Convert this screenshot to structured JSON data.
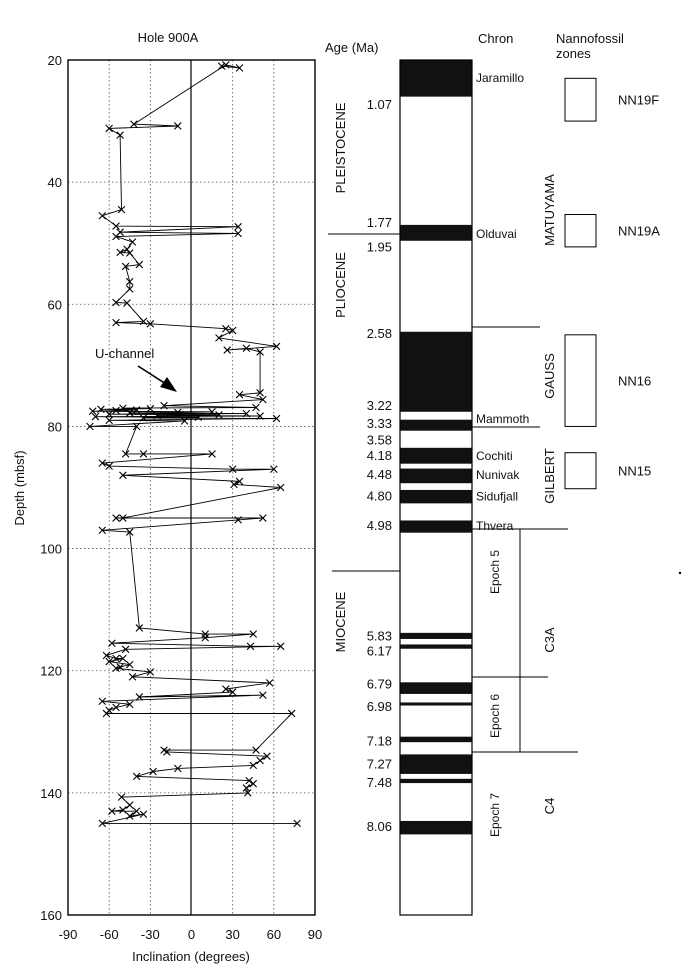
{
  "chart_data": {
    "type": "line",
    "title": "Hole 900A",
    "xlabel": "Inclination (degrees)",
    "ylabel": "Depth (mbsf)",
    "xlim": [
      -90,
      90
    ],
    "ylim": [
      20,
      160
    ],
    "y_inverted": true,
    "xticks": [
      "-90",
      "-60",
      "-30",
      "0",
      "30",
      "60",
      "90"
    ],
    "yticks": [
      "20",
      "40",
      "60",
      "80",
      "100",
      "120",
      "140",
      "160"
    ],
    "grid": "dotted",
    "annotation": "U-channel",
    "annotation_target": {
      "x": -12,
      "y": 77.5
    },
    "series": [
      {
        "points": [
          [
            22,
            21
          ],
          [
            35,
            21.3
          ],
          [
            25,
            20.8
          ],
          [
            -42,
            30.5
          ],
          [
            -10,
            30.8
          ],
          [
            -60,
            31.2
          ],
          [
            -52,
            32.3
          ],
          [
            -51,
            44.5
          ],
          [
            -65,
            45.5
          ],
          [
            -55,
            47.2
          ],
          [
            34,
            47.3
          ],
          [
            -52,
            48.2
          ],
          [
            34,
            48.4
          ],
          [
            -55,
            48.9
          ],
          [
            -43,
            49.8
          ],
          [
            -47,
            51
          ],
          [
            -52,
            51.5
          ],
          [
            -45,
            51.6
          ],
          [
            -38,
            53.5
          ],
          [
            -48,
            53.8
          ],
          [
            -45,
            56.3
          ],
          [
            -45,
            57.5
          ],
          [
            -55,
            59.7
          ],
          [
            -47,
            59.8
          ],
          [
            -35,
            62.8
          ],
          [
            -55,
            63
          ],
          [
            -30,
            63.2
          ],
          [
            25,
            64
          ],
          [
            30,
            64.3
          ],
          [
            20,
            65.5
          ],
          [
            62,
            66.9
          ],
          [
            26,
            67.5
          ],
          [
            40,
            67.2
          ],
          [
            50,
            67.8
          ],
          [
            50,
            74.5
          ],
          [
            35,
            74.8
          ],
          [
            52,
            75.6
          ],
          [
            -20,
            76.6
          ],
          [
            47,
            76.9
          ],
          [
            -50,
            77
          ],
          [
            -30,
            77.1
          ],
          [
            -66,
            77.2
          ],
          [
            -40,
            77.3
          ],
          [
            -55,
            77.4
          ],
          [
            -72,
            77.5
          ],
          [
            15,
            77.6
          ],
          [
            -10,
            77.7
          ],
          [
            -45,
            77.8
          ],
          [
            40,
            77.9
          ],
          [
            -60,
            78
          ],
          [
            20,
            78.1
          ],
          [
            -25,
            78.2
          ],
          [
            50,
            78.3
          ],
          [
            -70,
            78.4
          ],
          [
            5,
            78.5
          ],
          [
            -35,
            78.6
          ],
          [
            62,
            78.7
          ],
          [
            -60,
            79
          ],
          [
            -5,
            79.1
          ],
          [
            -74,
            80
          ],
          [
            -40,
            80
          ],
          [
            -48,
            84.5
          ],
          [
            -35,
            84.5
          ],
          [
            15,
            84.5
          ],
          [
            -65,
            86
          ],
          [
            -60,
            86.5
          ],
          [
            30,
            87
          ],
          [
            60,
            87
          ],
          [
            -50,
            88
          ],
          [
            35,
            89
          ],
          [
            31,
            89.5
          ],
          [
            65,
            90
          ],
          [
            -50,
            95
          ],
          [
            -55,
            95
          ],
          [
            52,
            95
          ],
          [
            34,
            95.3
          ],
          [
            -65,
            97
          ],
          [
            -45,
            97.3
          ],
          [
            -38,
            113
          ],
          [
            10,
            114
          ],
          [
            45,
            114
          ],
          [
            10,
            114.6
          ],
          [
            -58,
            115.5
          ],
          [
            43,
            116
          ],
          [
            65,
            116
          ],
          [
            -48,
            116.5
          ],
          [
            -62,
            117.5
          ],
          [
            -55,
            118
          ],
          [
            -50,
            118
          ],
          [
            -60,
            118.5
          ],
          [
            -45,
            119
          ],
          [
            -52,
            119.4
          ],
          [
            -55,
            119.6
          ],
          [
            -30,
            120.2
          ],
          [
            -43,
            121
          ],
          [
            57,
            122
          ],
          [
            25,
            123
          ],
          [
            30,
            123.5
          ],
          [
            -38,
            124.3
          ],
          [
            52,
            124
          ],
          [
            -65,
            125
          ],
          [
            -45,
            125.5
          ],
          [
            -55,
            126
          ],
          [
            -60,
            126.5
          ],
          [
            -62,
            127
          ],
          [
            73,
            127
          ],
          [
            47,
            133
          ],
          [
            -20,
            133
          ],
          [
            -18,
            133.3
          ],
          [
            55,
            134
          ],
          [
            50,
            134.7
          ],
          [
            45,
            135.5
          ],
          [
            -10,
            136
          ],
          [
            -28,
            136.5
          ],
          [
            -40,
            137.3
          ],
          [
            42,
            138
          ],
          [
            45,
            138.5
          ],
          [
            40,
            139.2
          ],
          [
            41,
            140
          ],
          [
            -51,
            140.7
          ],
          [
            -45,
            142
          ],
          [
            -50,
            142.8
          ],
          [
            -58,
            143
          ],
          [
            -40,
            143
          ],
          [
            -45,
            143.8
          ],
          [
            -35,
            143.5
          ],
          [
            -65,
            145
          ],
          [
            77,
            145
          ]
        ]
      }
    ]
  },
  "column_headers": {
    "age": "Age (Ma)",
    "chron": "Chron",
    "zones_line1": "Nannofossil",
    "zones_line2": "zones"
  },
  "epochs": [
    "PLEISTOCENE",
    "PLIOCENE",
    "MIOCENE"
  ],
  "ages": [
    {
      "label": "1.07",
      "depth": 27.2
    },
    {
      "label": "1.77",
      "depth": 46.5
    },
    {
      "label": "1.95",
      "depth": 50.5
    },
    {
      "label": "2.58",
      "depth": 64.7
    },
    {
      "label": "3.22",
      "depth": 76.5
    },
    {
      "label": "3.33",
      "depth": 79.4
    },
    {
      "label": "3.58",
      "depth": 82.1
    },
    {
      "label": "4.18",
      "depth": 84.7
    },
    {
      "label": "4.48",
      "depth": 87.8
    },
    {
      "label": "4.80",
      "depth": 91.3
    },
    {
      "label": "4.98",
      "depth": 96.1
    },
    {
      "label": "5.83",
      "depth": 114.2
    },
    {
      "label": "6.17",
      "depth": 116.7
    },
    {
      "label": "6.79",
      "depth": 122.1
    },
    {
      "label": "6.98",
      "depth": 125.8
    },
    {
      "label": "7.18",
      "depth": 131.4
    },
    {
      "label": "7.27",
      "depth": 135.2
    },
    {
      "label": "7.48",
      "depth": 138.2
    },
    {
      "label": "8.06",
      "depth": 145.4
    }
  ],
  "polarity_black": [
    [
      20,
      26
    ],
    [
      47,
      49.6
    ],
    [
      64.5,
      77.6
    ],
    [
      78.9,
      80.7
    ],
    [
      83.5,
      86.1
    ],
    [
      86.9,
      89.3
    ],
    [
      90.4,
      92.6
    ],
    [
      95.4,
      97.4
    ],
    [
      113.8,
      114.8
    ],
    [
      115.7,
      116.4
    ],
    [
      121.9,
      123.8
    ],
    [
      125.2,
      125.7
    ],
    [
      130.8,
      131.7
    ],
    [
      133.7,
      136.9
    ],
    [
      137.7,
      138.4
    ],
    [
      144.6,
      146.8
    ]
  ],
  "subchrons": [
    {
      "label": "Jaramillo",
      "depth": 22.8
    },
    {
      "label": "Olduvai",
      "depth": 48.3
    },
    {
      "label": "Mammoth",
      "depth": 78.6
    },
    {
      "label": "Cochiti",
      "depth": 84.7
    },
    {
      "label": "Nunivak",
      "depth": 87.8
    },
    {
      "label": "Sidufjall",
      "depth": 91.3
    },
    {
      "label": "Thvera",
      "depth": 96.1
    }
  ],
  "chrons": [
    "MATUYAMA",
    "GAUSS",
    "GILBERT"
  ],
  "epoch_labels": [
    "Epoch 5",
    "Epoch 6",
    "Epoch 7"
  ],
  "chron_codes": [
    "C3A",
    "C4"
  ],
  "zones": [
    {
      "label": "NN19F",
      "top": 23,
      "bottom": 30
    },
    {
      "label": "NN19A",
      "top": 45.3,
      "bottom": 50.6
    },
    {
      "label": "NN16",
      "top": 65,
      "bottom": 80
    },
    {
      "label": "NN15",
      "top": 84.3,
      "bottom": 90.2
    }
  ]
}
